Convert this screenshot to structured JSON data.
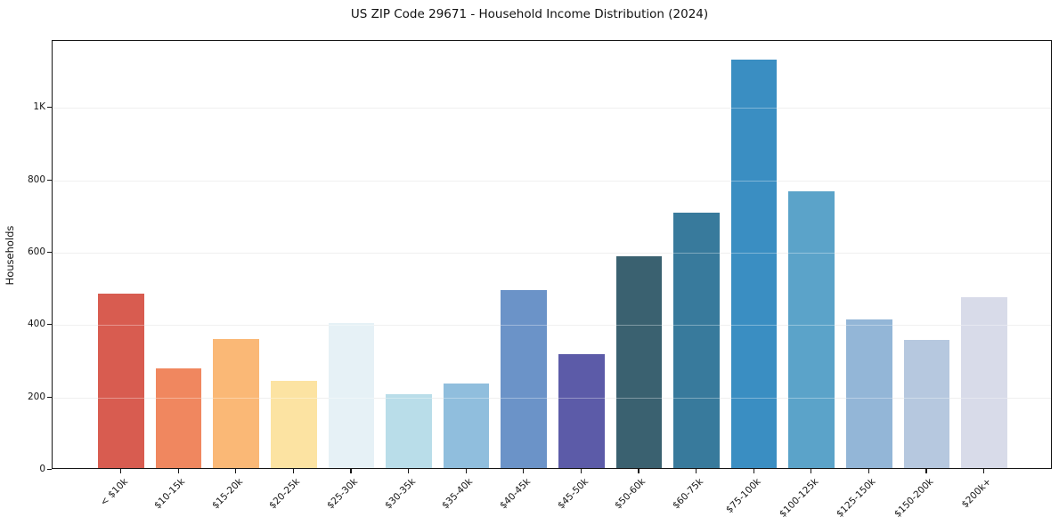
{
  "chart_data": {
    "type": "bar",
    "title": "US ZIP Code 29671 - Household Income Distribution (2024)",
    "xlabel": "",
    "ylabel": "Households",
    "categories": [
      "< $10k",
      "$10-15k",
      "$15-20k",
      "$20-25k",
      "$25-30k",
      "$30-35k",
      "$35-40k",
      "$40-45k",
      "$45-50k",
      "$50-60k",
      "$60-75k",
      "$75-100k",
      "$100-125k",
      "$125-150k",
      "$150-200k",
      "$200k+"
    ],
    "values": [
      481,
      275,
      357,
      240,
      402,
      205,
      234,
      491,
      314,
      586,
      706,
      1128,
      764,
      410,
      355,
      473
    ],
    "bar_colors": [
      "#d85c50",
      "#f0875f",
      "#fab876",
      "#fce3a2",
      "#e6f1f6",
      "#b9dde9",
      "#90bedd",
      "#6b93c8",
      "#5c5ba8",
      "#3a6170",
      "#387a9c",
      "#3a8ec2",
      "#5ba3c9",
      "#93b6d7",
      "#b6c8df",
      "#d8dbe9"
    ],
    "ytick_values": [
      0,
      200,
      400,
      600,
      800,
      1000
    ],
    "ytick_labels": [
      "0",
      "200",
      "400",
      "600",
      "800",
      "1K"
    ],
    "ylim": [
      0,
      1185
    ],
    "grid": "horizontal",
    "legend_position": "none",
    "x_tick_rotation_deg": 45,
    "background_color": "#ffffff"
  }
}
